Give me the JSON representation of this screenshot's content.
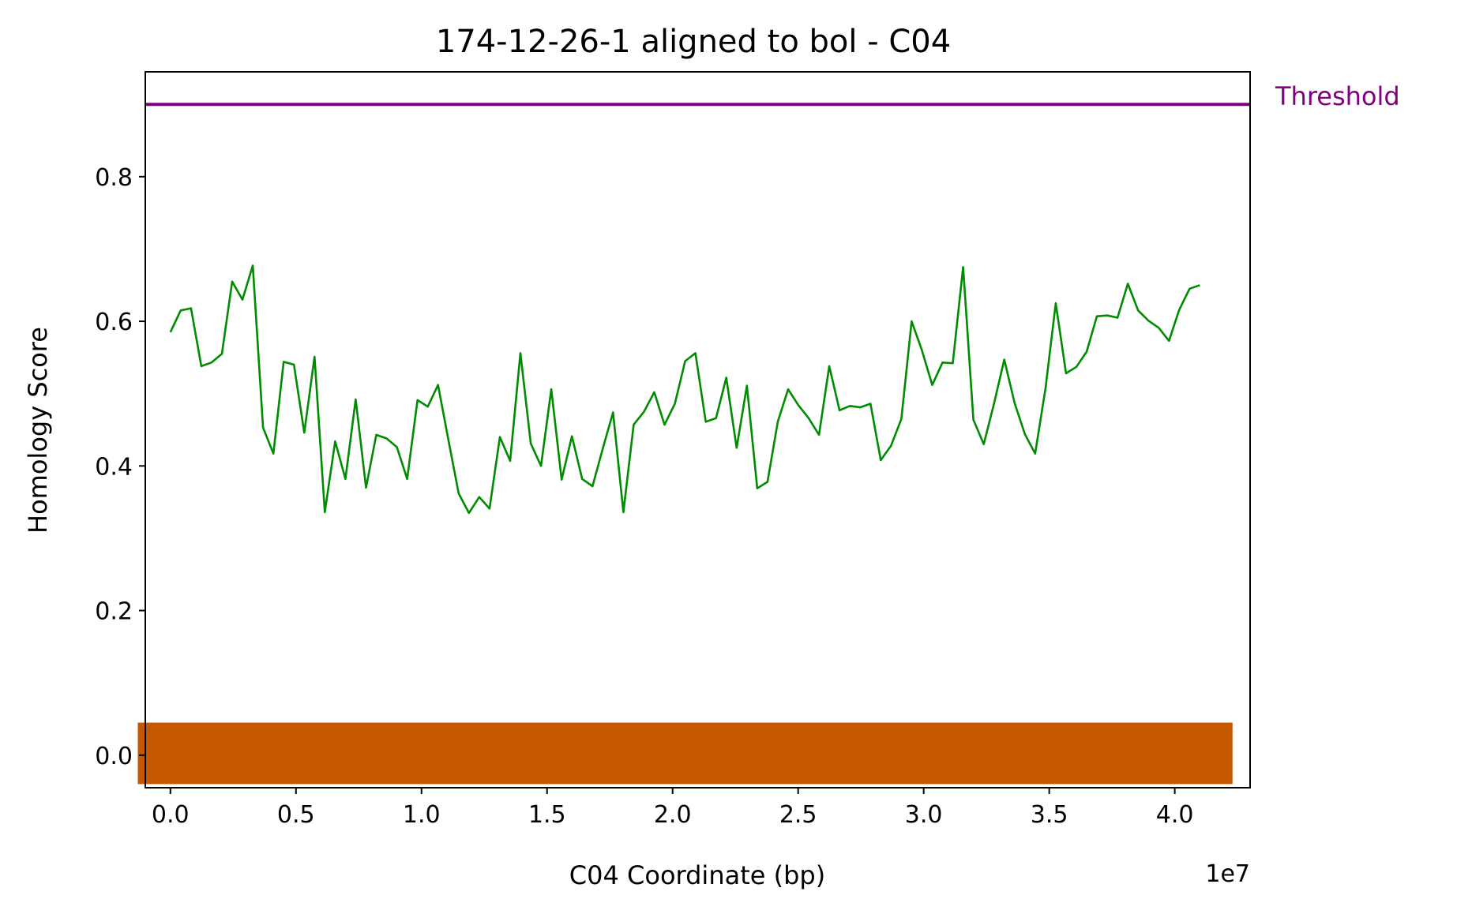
{
  "chart_data": {
    "type": "line",
    "title": "174-12-26-1 aligned to bol - C04",
    "xlabel": "C04 Coordinate (bp)",
    "ylabel": "Homology Score",
    "x_offset_text": "1e7",
    "xlim": [
      -1000000,
      43000000
    ],
    "ylim": [
      -0.045,
      0.945
    ],
    "x_ticks": [
      0,
      5000000,
      10000000,
      15000000,
      20000000,
      25000000,
      30000000,
      35000000,
      40000000
    ],
    "x_tick_labels": [
      "0.0",
      "0.5",
      "1.0",
      "1.5",
      "2.0",
      "2.5",
      "3.0",
      "3.5",
      "4.0"
    ],
    "y_ticks": [
      0.0,
      0.2,
      0.4,
      0.6,
      0.8
    ],
    "y_tick_labels": [
      "0.0",
      "0.2",
      "0.4",
      "0.6",
      "0.8"
    ],
    "grid": false,
    "threshold": {
      "label": "Threshold",
      "value": 0.9,
      "color": "#800080"
    },
    "band": {
      "x_start": -1300000,
      "x_end": 42300000,
      "y_bottom": -0.04,
      "y_top": 0.045,
      "color": "#c65900"
    },
    "series": [
      {
        "color": "#008c00",
        "x": [
          0,
          410000,
          820000,
          1230000,
          1640000,
          2050000,
          2460000,
          2870000,
          3280000,
          3690000,
          4100000,
          4510000,
          4920000,
          5330000,
          5740000,
          6150000,
          6560000,
          6970000,
          7380000,
          7790000,
          8200000,
          8610000,
          9020000,
          9430000,
          9840000,
          10250000,
          10660000,
          11070000,
          11480000,
          11890000,
          12300000,
          12710000,
          13120000,
          13530000,
          13940000,
          14350000,
          14760000,
          15170000,
          15580000,
          15990000,
          16400000,
          16810000,
          17220000,
          17630000,
          18040000,
          18450000,
          18860000,
          19270000,
          19680000,
          20090000,
          20500000,
          20910000,
          21320000,
          21730000,
          22140000,
          22550000,
          22960000,
          23370000,
          23780000,
          24190000,
          24600000,
          25010000,
          25420000,
          25830000,
          26240000,
          26650000,
          27060000,
          27470000,
          27880000,
          28290000,
          28700000,
          29110000,
          29520000,
          29930000,
          30340000,
          30750000,
          31160000,
          31570000,
          31980000,
          32390000,
          32800000,
          33210000,
          33620000,
          34030000,
          34440000,
          34850000,
          35260000,
          35670000,
          36080000,
          36490000,
          36900000,
          37310000,
          37720000,
          38130000,
          38540000,
          38950000,
          39360000,
          39770000,
          40180000,
          40590000,
          41000000
        ],
        "values": [
          0.585,
          0.615,
          0.618,
          0.538,
          0.543,
          0.555,
          0.655,
          0.63,
          0.677,
          0.453,
          0.417,
          0.544,
          0.54,
          0.446,
          0.551,
          0.336,
          0.434,
          0.382,
          0.492,
          0.37,
          0.443,
          0.438,
          0.426,
          0.382,
          0.491,
          0.482,
          0.512,
          0.436,
          0.362,
          0.335,
          0.357,
          0.341,
          0.44,
          0.407,
          0.556,
          0.431,
          0.4,
          0.506,
          0.381,
          0.441,
          0.382,
          0.372,
          0.424,
          0.474,
          0.336,
          0.457,
          0.475,
          0.502,
          0.457,
          0.486,
          0.545,
          0.556,
          0.461,
          0.466,
          0.522,
          0.425,
          0.511,
          0.369,
          0.378,
          0.461,
          0.506,
          0.484,
          0.466,
          0.443,
          0.538,
          0.477,
          0.483,
          0.481,
          0.486,
          0.408,
          0.428,
          0.465,
          0.6,
          0.56,
          0.512,
          0.543,
          0.542,
          0.675,
          0.464,
          0.43,
          0.486,
          0.547,
          0.487,
          0.444,
          0.417,
          0.507,
          0.625,
          0.528,
          0.537,
          0.558,
          0.607,
          0.608,
          0.605,
          0.652,
          0.615,
          0.601,
          0.591,
          0.573,
          0.616,
          0.645,
          0.65
        ]
      }
    ]
  }
}
